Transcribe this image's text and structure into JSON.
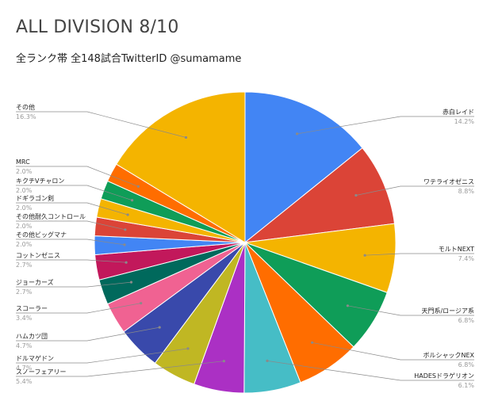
{
  "title": "ALL DIVISION 8/10",
  "subtitle": "全ランク帯 全148試合TwitterID @sumamame",
  "chart_data": {
    "type": "pie",
    "title": "ALL DIVISION 8/10",
    "subtitle": "全ランク帯 全148試合TwitterID @sumamame",
    "slices": [
      {
        "label": "赤白レイド",
        "value": 14.2,
        "pct_text": "14.2%",
        "color": "#4285f4"
      },
      {
        "label": "ワテライオゼニス",
        "value": 8.8,
        "pct_text": "8.8%",
        "color": "#db4437"
      },
      {
        "label": "モルトNEXT",
        "value": 7.4,
        "pct_text": "7.4%",
        "color": "#f4b400"
      },
      {
        "label": "天門系/ロージア系",
        "value": 6.8,
        "pct_text": "6.8%",
        "color": "#0f9d58"
      },
      {
        "label": "ボルシャックNEX",
        "value": 6.8,
        "pct_text": "6.8%",
        "color": "#ff6d00"
      },
      {
        "label": "HADESドラゲリオン",
        "value": 6.1,
        "pct_text": "6.1%",
        "color": "#46bdc6"
      },
      {
        "label": "スノーフェアリー",
        "value": 5.4,
        "pct_text": "5.4%",
        "color": "#ab30c4"
      },
      {
        "label": "ドルマゲドン",
        "value": 4.7,
        "pct_text": "4.7%",
        "color": "#c0b723"
      },
      {
        "label": "ハムカツ団",
        "value": 4.7,
        "pct_text": "4.7%",
        "color": "#3949ab"
      },
      {
        "label": "スコーラー",
        "value": 3.4,
        "pct_text": "3.4%",
        "color": "#f06292"
      },
      {
        "label": "ジョーカーズ",
        "value": 2.7,
        "pct_text": "2.7%",
        "color": "#00695c"
      },
      {
        "label": "コットンゼニス",
        "value": 2.7,
        "pct_text": "2.7%",
        "color": "#c2185b"
      },
      {
        "label": "その他ビッグマナ",
        "value": 2.0,
        "pct_text": "2.0%",
        "color": "#4285f4"
      },
      {
        "label": "その他耐久コントロール",
        "value": 2.0,
        "pct_text": "2.0%",
        "color": "#db4437"
      },
      {
        "label": "ドギラゴン剣",
        "value": 2.0,
        "pct_text": "2.0%",
        "color": "#f4b400"
      },
      {
        "label": "キクチVチャロン",
        "value": 2.0,
        "pct_text": "2.0%",
        "color": "#0f9d58"
      },
      {
        "label": "MRC",
        "value": 2.0,
        "pct_text": "2.0%",
        "color": "#ff6d00"
      },
      {
        "label": "その他",
        "value": 16.3,
        "pct_text": "16.3%",
        "color": "#f4b400"
      }
    ]
  }
}
